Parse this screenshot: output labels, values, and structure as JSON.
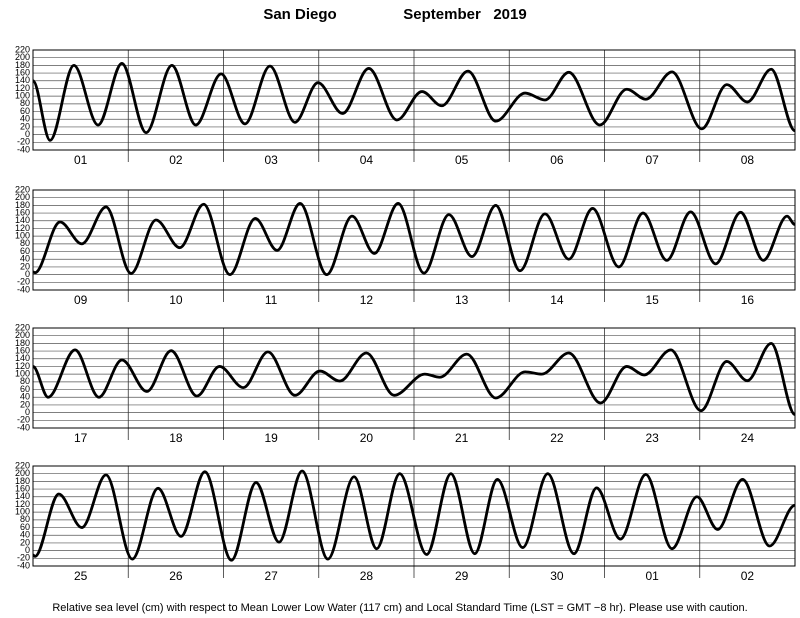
{
  "chart_data": [
    {
      "type": "line",
      "title": "San Diego",
      "subtitle": "September   2019",
      "caption": "Relative sea level (cm) with respect to Mean Lower Low Water (117 cm) and Local Standard Time (LST = GMT −8 hr). Please use with caution.",
      "categories": [
        "01",
        "02",
        "03",
        "04",
        "05",
        "06",
        "07",
        "08"
      ],
      "x": [
        0,
        4.3,
        10.3,
        16.4,
        22.4,
        28.5,
        35,
        41,
        47.4,
        53.4,
        59.7,
        66,
        71.8,
        78,
        84.6,
        91.7,
        98,
        103,
        109.6,
        116.6,
        124,
        129,
        135,
        142.8,
        149.6,
        154.4,
        161,
        168.5,
        174.8,
        180,
        186,
        192
      ],
      "values": [
        140,
        -15,
        180,
        25,
        185,
        5,
        180,
        25,
        158,
        28,
        178,
        32,
        135,
        55,
        172,
        38,
        112,
        75,
        165,
        35,
        108,
        90,
        162,
        25,
        118,
        92,
        163,
        15,
        130,
        85,
        170,
        10
      ],
      "color": "#000000",
      "xlim": [
        0,
        192
      ],
      "xticks": [
        24,
        48,
        72,
        96,
        120,
        144,
        168
      ],
      "ylim": [
        -40,
        220
      ],
      "yticks": [
        -40,
        -20,
        0,
        20,
        40,
        60,
        80,
        100,
        120,
        140,
        160,
        180,
        200,
        220
      ],
      "grid": true
    },
    {
      "type": "line",
      "categories": [
        "09",
        "10",
        "11",
        "12",
        "13",
        "14",
        "15",
        "16"
      ],
      "x": [
        0,
        0.5,
        6.8,
        12.3,
        18.4,
        24.7,
        31,
        37,
        43,
        49.6,
        56,
        61.5,
        67.3,
        74,
        80.4,
        86,
        92,
        98.5,
        104.8,
        110.6,
        116.6,
        122.7,
        129,
        135,
        141,
        147.6,
        153.7,
        159.7,
        165.7,
        172,
        178.3,
        184,
        190,
        192
      ],
      "values": [
        7,
        5,
        137,
        80,
        176,
        3,
        142,
        70,
        183,
        0,
        146,
        63,
        185,
        0,
        152,
        55,
        185,
        4,
        156,
        47,
        180,
        10,
        158,
        40,
        172,
        20,
        160,
        37,
        163,
        28,
        162,
        37,
        152,
        130
      ],
      "color": "#000000",
      "xlim": [
        0,
        192
      ],
      "xticks": [
        24,
        48,
        72,
        96,
        120,
        144,
        168
      ],
      "ylim": [
        -40,
        220
      ],
      "yticks": [
        -40,
        -20,
        0,
        20,
        40,
        60,
        80,
        100,
        120,
        140,
        160,
        180,
        200,
        220
      ],
      "grid": true
    },
    {
      "type": "line",
      "categories": [
        "17",
        "18",
        "19",
        "20",
        "21",
        "22",
        "23",
        "24"
      ],
      "x": [
        0,
        3.8,
        10.6,
        16.6,
        22.4,
        28.7,
        34.8,
        41.3,
        47,
        53,
        59.2,
        66,
        72.3,
        77.3,
        84,
        91,
        98.7,
        102.5,
        109.3,
        116.6,
        124,
        128.2,
        135,
        143,
        149.6,
        154,
        160.7,
        168.3,
        174.8,
        180,
        186,
        192
      ],
      "values": [
        120,
        40,
        163,
        40,
        137,
        55,
        161,
        43,
        120,
        65,
        158,
        45,
        108,
        82,
        155,
        45,
        100,
        92,
        152,
        38,
        106,
        100,
        155,
        25,
        120,
        98,
        163,
        5,
        133,
        83,
        180,
        -5
      ],
      "color": "#000000",
      "xlim": [
        0,
        192
      ],
      "xticks": [
        24,
        48,
        72,
        96,
        120,
        144,
        168
      ],
      "ylim": [
        -40,
        220
      ],
      "yticks": [
        -40,
        -20,
        0,
        20,
        40,
        60,
        80,
        100,
        120,
        140,
        160,
        180,
        200,
        220
      ],
      "grid": true
    },
    {
      "type": "line",
      "categories": [
        "25",
        "26",
        "27",
        "28",
        "29",
        "30",
        "01",
        "02"
      ],
      "x": [
        0,
        0.5,
        6.5,
        12.3,
        18.4,
        25,
        31.5,
        37.3,
        43.3,
        50,
        56.2,
        62,
        67.8,
        74.3,
        80.9,
        86.6,
        92.4,
        99.2,
        105.3,
        111.3,
        117,
        123.4,
        129.7,
        136.3,
        142,
        148,
        154.4,
        161,
        167.3,
        172.5,
        178.8,
        185.6,
        192
      ],
      "values": [
        -11,
        -15,
        147,
        60,
        197,
        -22,
        162,
        37,
        205,
        -25,
        177,
        22,
        207,
        -22,
        192,
        5,
        200,
        -10,
        200,
        -8,
        185,
        8,
        200,
        -8,
        163,
        30,
        198,
        5,
        140,
        55,
        185,
        12,
        118
      ],
      "color": "#000000",
      "xlim": [
        0,
        192
      ],
      "xticks": [
        24,
        48,
        72,
        96,
        120,
        144,
        168
      ],
      "ylim": [
        -40,
        220
      ],
      "yticks": [
        -40,
        -20,
        0,
        20,
        40,
        60,
        80,
        100,
        120,
        140,
        160,
        180,
        200,
        220
      ],
      "grid": true
    }
  ]
}
